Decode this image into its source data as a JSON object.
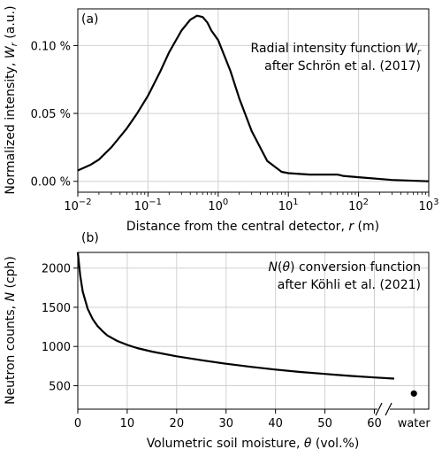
{
  "chart_data": [
    {
      "panel": "(a)",
      "type": "line",
      "x_scale": "log",
      "xlim": [
        0.01,
        1000
      ],
      "ylim": [
        -8e-05,
        0.00127
      ],
      "y_format": "percent",
      "grid": true,
      "xlabel": "Distance from the central detector, r (m)",
      "ylabel": "Normalized intensity, W_r (a.u.)",
      "annotation": [
        "Radial intensity function W_r",
        "after Schrön et al. (2017)"
      ],
      "x_ticks": [
        {
          "value": 0.01,
          "base": "10",
          "exp": "−2"
        },
        {
          "value": 0.1,
          "base": "10",
          "exp": "−1"
        },
        {
          "value": 1,
          "base": "10",
          "exp": "0"
        },
        {
          "value": 10,
          "base": "10",
          "exp": "1"
        },
        {
          "value": 100,
          "base": "10",
          "exp": "2"
        },
        {
          "value": 1000,
          "base": "10",
          "exp": "3"
        }
      ],
      "y_ticks": [
        {
          "value": 0.0,
          "label": "0.00 %"
        },
        {
          "value": 0.0005,
          "label": "0.05 %"
        },
        {
          "value": 0.001,
          "label": "0.10 %"
        }
      ],
      "series": [
        {
          "x": [
            0.01,
            0.015,
            0.02,
            0.03,
            0.05,
            0.07,
            0.1,
            0.15,
            0.2,
            0.3,
            0.4,
            0.5,
            0.6,
            0.7,
            0.8,
            1.0,
            1.5,
            2,
            3,
            5,
            8,
            10,
            20,
            50,
            60,
            100,
            300,
            1000
          ],
          "y": [
            8e-05,
            0.00012,
            0.00016,
            0.00025,
            0.00039,
            0.0005,
            0.00063,
            0.00081,
            0.00095,
            0.00111,
            0.00119,
            0.00122,
            0.00121,
            0.00117,
            0.00111,
            0.00104,
            0.00081,
            0.00061,
            0.00037,
            0.00015,
            7e-05,
            6e-05,
            5e-05,
            5e-05,
            4e-05,
            3e-05,
            1e-05,
            0.0
          ]
        }
      ]
    },
    {
      "panel": "(b)",
      "type": "line",
      "xlim": [
        0,
        71
      ],
      "ylim": [
        200,
        2200
      ],
      "grid": true,
      "xlabel": "Volumetric soil moisture, θ (vol.%)",
      "ylabel": "Neutron counts, N (cph)",
      "annotation": [
        "N(θ) conversion function",
        "after Köhli et al. (2021)"
      ],
      "x_ticks": [
        {
          "value": 0,
          "label": "0"
        },
        {
          "value": 10,
          "label": "10"
        },
        {
          "value": 20,
          "label": "20"
        },
        {
          "value": 30,
          "label": "30"
        },
        {
          "value": 40,
          "label": "40"
        },
        {
          "value": 50,
          "label": "50"
        },
        {
          "value": 60,
          "label": "60"
        }
      ],
      "extra_tick": {
        "value": 68,
        "label": "water"
      },
      "y_ticks": [
        {
          "value": 500,
          "label": "500"
        },
        {
          "value": 1000,
          "label": "1000"
        },
        {
          "value": 1500,
          "label": "1500"
        },
        {
          "value": 2000,
          "label": "2000"
        }
      ],
      "series": [
        {
          "x": [
            0,
            0.5,
            1,
            2,
            3,
            4,
            5,
            6,
            8,
            10,
            12,
            15,
            20,
            25,
            30,
            35,
            40,
            45,
            50,
            55,
            60,
            64
          ],
          "y": [
            2200,
            1900,
            1700,
            1480,
            1350,
            1260,
            1195,
            1140,
            1070,
            1020,
            980,
            935,
            875,
            825,
            780,
            740,
            705,
            675,
            650,
            625,
            605,
            590
          ]
        }
      ],
      "points": [
        {
          "x": 68,
          "y": 400,
          "label": "water"
        }
      ]
    }
  ]
}
